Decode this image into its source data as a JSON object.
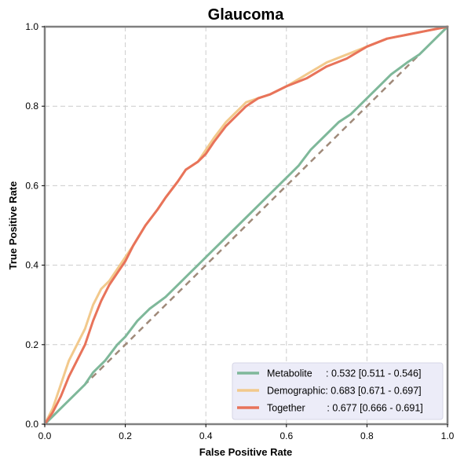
{
  "chart_data": {
    "type": "line",
    "title": "Glaucoma",
    "xlabel": "False Positive Rate",
    "ylabel": "True Positive Rate",
    "xlim": [
      0,
      1
    ],
    "ylim": [
      0,
      1
    ],
    "xticks": [
      "0.0",
      "0.2",
      "0.4",
      "0.6",
      "0.8",
      "1.0"
    ],
    "yticks": [
      "0.0",
      "0.2",
      "0.4",
      "0.6",
      "0.8",
      "1.0"
    ],
    "grid": true,
    "legend_position": "bottom-right",
    "series": [
      {
        "name": "Metabolite",
        "label": "Metabolite     : 0.532 [0.511 - 0.546]",
        "color": "#7fb89a",
        "x": [
          0,
          0.02,
          0.05,
          0.08,
          0.1,
          0.12,
          0.15,
          0.18,
          0.2,
          0.23,
          0.26,
          0.3,
          0.33,
          0.36,
          0.4,
          0.43,
          0.46,
          0.5,
          0.53,
          0.56,
          0.6,
          0.63,
          0.66,
          0.7,
          0.73,
          0.76,
          0.8,
          0.83,
          0.86,
          0.9,
          0.93,
          0.95,
          0.97,
          1.0
        ],
        "y": [
          0,
          0.02,
          0.05,
          0.08,
          0.1,
          0.13,
          0.16,
          0.2,
          0.22,
          0.26,
          0.29,
          0.32,
          0.35,
          0.38,
          0.42,
          0.45,
          0.48,
          0.52,
          0.55,
          0.58,
          0.62,
          0.65,
          0.69,
          0.73,
          0.76,
          0.78,
          0.82,
          0.85,
          0.88,
          0.91,
          0.93,
          0.95,
          0.97,
          1.0
        ]
      },
      {
        "name": "Demographic",
        "label": "Demographic: 0.683 [0.671 - 0.697]",
        "color": "#f2c98c",
        "x": [
          0,
          0.02,
          0.04,
          0.06,
          0.08,
          0.1,
          0.12,
          0.14,
          0.16,
          0.18,
          0.2,
          0.22,
          0.25,
          0.28,
          0.3,
          0.33,
          0.35,
          0.38,
          0.4,
          0.42,
          0.45,
          0.48,
          0.5,
          0.53,
          0.56,
          0.6,
          0.65,
          0.7,
          0.75,
          0.8,
          0.85,
          0.9,
          0.95,
          1.0
        ],
        "y": [
          0,
          0.04,
          0.1,
          0.16,
          0.2,
          0.24,
          0.3,
          0.34,
          0.36,
          0.39,
          0.42,
          0.45,
          0.5,
          0.54,
          0.57,
          0.61,
          0.64,
          0.66,
          0.69,
          0.72,
          0.76,
          0.79,
          0.81,
          0.82,
          0.83,
          0.85,
          0.88,
          0.91,
          0.93,
          0.95,
          0.97,
          0.98,
          0.99,
          1.0
        ]
      },
      {
        "name": "Together",
        "label": "Together        : 0.677 [0.666 - 0.691]",
        "color": "#e8735a",
        "x": [
          0,
          0.02,
          0.04,
          0.06,
          0.08,
          0.1,
          0.12,
          0.14,
          0.16,
          0.18,
          0.2,
          0.22,
          0.25,
          0.28,
          0.3,
          0.33,
          0.35,
          0.38,
          0.4,
          0.42,
          0.45,
          0.48,
          0.5,
          0.53,
          0.56,
          0.6,
          0.65,
          0.7,
          0.75,
          0.8,
          0.85,
          0.9,
          0.95,
          1.0
        ],
        "y": [
          0,
          0.03,
          0.07,
          0.12,
          0.16,
          0.2,
          0.26,
          0.31,
          0.35,
          0.38,
          0.41,
          0.45,
          0.5,
          0.54,
          0.57,
          0.61,
          0.64,
          0.66,
          0.68,
          0.71,
          0.75,
          0.78,
          0.8,
          0.82,
          0.83,
          0.85,
          0.87,
          0.9,
          0.92,
          0.95,
          0.97,
          0.98,
          0.99,
          1.0
        ]
      }
    ],
    "reference_line": {
      "x": [
        0,
        1
      ],
      "y": [
        0,
        1
      ],
      "color": "#a08a7a",
      "style": "dashed"
    },
    "colors": {
      "frame": "#808080",
      "legend_bg": "#ececf8",
      "grid": "#cccccc"
    }
  }
}
